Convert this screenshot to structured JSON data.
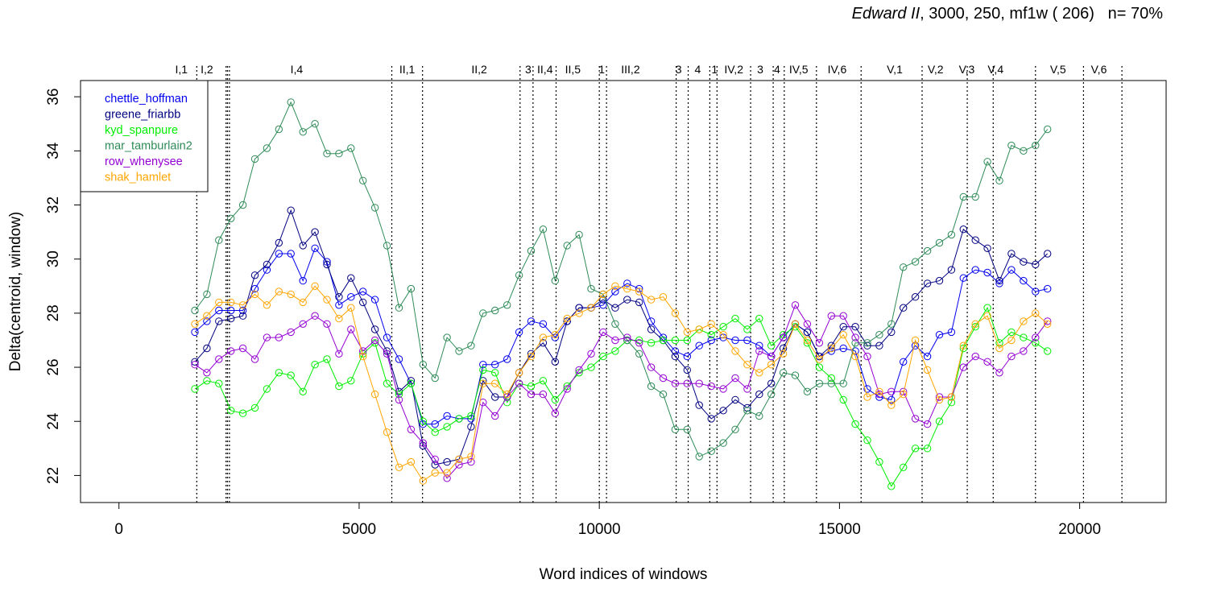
{
  "title": {
    "italic_part": "Edward II",
    "rest": ", 3000, 250, mf1w ( 206)",
    "coverage": "n= 70%"
  },
  "chart_data": {
    "type": "line",
    "xlabel": "Word indices of windows",
    "ylabel": "Delta(centroid, window)",
    "xlim": [
      -800,
      21800
    ],
    "ylim": [
      21.0,
      36.6
    ],
    "x_ticks": [
      0,
      5000,
      10000,
      15000,
      20000
    ],
    "x_tick_labels": [
      "0",
      "5000",
      "10000",
      "15000",
      "20000"
    ],
    "y_ticks": [
      22,
      24,
      26,
      28,
      30,
      32,
      34,
      36
    ],
    "y_tick_labels": [
      "22",
      "24",
      "26",
      "28",
      "30",
      "32",
      "34",
      "36"
    ],
    "legend_position": "top-left",
    "scenes": [
      {
        "label": "I,1",
        "x": 1300
      },
      {
        "label": "I,2",
        "x": 1830,
        "boundary": 1620
      },
      {
        "label": "I,4",
        "x": 3700,
        "boundary": 2260
      },
      {
        "label": "",
        "x": 2230,
        "boundary": 2230
      },
      {
        "label": "",
        "x": 2300,
        "boundary": 2300
      },
      {
        "label": "II,1",
        "x": 6000,
        "boundary": 5680
      },
      {
        "label": "II,2",
        "x": 7500,
        "boundary": 6320
      },
      {
        "label": "3",
        "x": 8520,
        "boundary": 8350
      },
      {
        "label": "II,4",
        "x": 8870,
        "boundary": 8620
      },
      {
        "label": "II,5",
        "x": 9450,
        "boundary": 9100
      },
      {
        "label": "1",
        "x": 10050,
        "boundary": 10000
      },
      {
        "label": "III,2",
        "x": 10650,
        "boundary": 10150
      },
      {
        "label": "3",
        "x": 11650,
        "boundary": 11600
      },
      {
        "label": "4",
        "x": 12050,
        "boundary": 11850
      },
      {
        "label": "1",
        "x": 12400,
        "boundary": 12300
      },
      {
        "label": "IV,2",
        "x": 12800,
        "boundary": 12450
      },
      {
        "label": "3",
        "x": 13350,
        "boundary": 13150
      },
      {
        "label": "4",
        "x": 13700,
        "boundary": 13620
      },
      {
        "label": "IV,5",
        "x": 14150,
        "boundary": 13850
      },
      {
        "label": "IV,6",
        "x": 14950,
        "boundary": 14520
      },
      {
        "label": "V,1",
        "x": 16150,
        "boundary": 15450
      },
      {
        "label": "V,2",
        "x": 17000,
        "boundary": 16720
      },
      {
        "label": "V,3",
        "x": 17650,
        "boundary": 17660
      },
      {
        "label": "V,4",
        "x": 18250,
        "boundary": 18200
      },
      {
        "label": "V,5",
        "x": 19550,
        "boundary": 19080
      },
      {
        "label": "V,6",
        "x": 20400,
        "boundary": 20080
      },
      {
        "label": "",
        "x": 20880,
        "boundary": 20880
      }
    ],
    "x": [
      1580,
      1830,
      2080,
      2330,
      2580,
      2830,
      3080,
      3330,
      3580,
      3830,
      4080,
      4330,
      4580,
      4830,
      5080,
      5330,
      5580,
      5830,
      6080,
      6330,
      6580,
      6830,
      7080,
      7330,
      7580,
      7830,
      8080,
      8330,
      8580,
      8830,
      9080,
      9330,
      9580,
      9830,
      10080,
      10330,
      10580,
      10830,
      11080,
      11330,
      11580,
      11830,
      12080,
      12330,
      12580,
      12830,
      13080,
      13330,
      13580,
      13830,
      14080,
      14330,
      14580,
      14830,
      15080,
      15330,
      15580,
      15830,
      16080,
      16330,
      16580,
      16830,
      17080,
      17330,
      17580,
      17830,
      18080,
      18330,
      18580,
      18830,
      19080,
      19330
    ],
    "series": [
      {
        "name": "chettle_hoffman",
        "color": "#0000ee",
        "values": [
          27.3,
          27.7,
          28.1,
          28.1,
          28.1,
          28.9,
          29.6,
          30.2,
          30.2,
          29.2,
          30.4,
          29.9,
          28.3,
          28.6,
          28.8,
          28.5,
          27.1,
          26.3,
          25.4,
          23.9,
          23.9,
          24.2,
          24.1,
          24.1,
          26.1,
          26.1,
          26.3,
          27.3,
          27.7,
          27.6,
          27.1,
          27.7,
          28.2,
          28.2,
          28.3,
          28.8,
          29.1,
          28.9,
          27.7,
          27.1,
          26.6,
          26.4,
          26.8,
          27.0,
          27.1,
          27.0,
          27.0,
          26.8,
          26.4,
          27.1,
          27.6,
          27.3,
          26.4,
          26.6,
          26.7,
          26.6,
          25.2,
          24.9,
          24.8,
          26.2,
          26.8,
          26.4,
          27.2,
          27.3,
          29.3,
          29.6,
          29.5,
          29.1,
          29.6,
          29.2,
          28.8,
          28.9
        ]
      },
      {
        "name": "greene_friarbb",
        "color": "#000080",
        "values": [
          26.2,
          26.7,
          27.7,
          27.8,
          27.9,
          29.4,
          29.8,
          30.6,
          31.8,
          30.5,
          31.0,
          29.8,
          28.6,
          29.3,
          28.4,
          27.4,
          26.6,
          25.1,
          25.5,
          23.1,
          22.4,
          22.5,
          22.6,
          23.8,
          25.5,
          24.9,
          24.9,
          25.8,
          26.5,
          26.9,
          26.2,
          27.7,
          28.2,
          28.2,
          28.5,
          28.2,
          28.5,
          28.4,
          27.4,
          27.0,
          26.4,
          25.9,
          24.6,
          24.1,
          24.4,
          24.8,
          24.5,
          25.0,
          25.4,
          26.7,
          27.6,
          27.3,
          26.4,
          26.8,
          27.5,
          27.5,
          26.8,
          26.8,
          27.3,
          28.2,
          28.6,
          29.1,
          29.2,
          29.6,
          31.1,
          30.7,
          30.4,
          29.2,
          30.2,
          29.9,
          29.8,
          30.2
        ]
      },
      {
        "name": "kyd_spanpure",
        "color": "#00ee00",
        "values": [
          25.2,
          25.5,
          25.4,
          24.4,
          24.3,
          24.5,
          25.2,
          25.8,
          25.7,
          25.1,
          26.1,
          26.3,
          25.3,
          25.5,
          26.5,
          26.9,
          25.4,
          25.0,
          25.4,
          24.0,
          23.6,
          23.8,
          24.1,
          24.2,
          25.9,
          25.8,
          24.7,
          25.4,
          25.3,
          25.5,
          24.8,
          25.3,
          25.8,
          26.0,
          26.4,
          26.6,
          27.0,
          27.0,
          26.9,
          27.0,
          27.0,
          27.0,
          27.4,
          27.2,
          27.5,
          27.8,
          27.4,
          27.8,
          26.8,
          27.2,
          27.5,
          26.9,
          26.0,
          25.6,
          24.8,
          23.9,
          23.3,
          22.5,
          21.6,
          22.3,
          23.0,
          23.0,
          24.0,
          24.7,
          26.7,
          27.5,
          28.2,
          26.9,
          27.3,
          27.1,
          26.9,
          26.6
        ]
      },
      {
        "name": "mar_tamburlain2",
        "color": "#2e8b57",
        "values": [
          28.1,
          28.7,
          30.7,
          31.5,
          32.0,
          33.7,
          34.1,
          34.8,
          35.8,
          34.7,
          35.0,
          33.9,
          33.9,
          34.1,
          32.9,
          31.9,
          30.5,
          28.2,
          28.9,
          26.1,
          25.6,
          27.1,
          26.6,
          26.8,
          28.0,
          28.1,
          28.3,
          29.4,
          30.3,
          31.1,
          29.2,
          30.5,
          30.9,
          28.9,
          28.7,
          27.6,
          27.0,
          26.5,
          25.3,
          25.0,
          23.7,
          23.7,
          22.7,
          22.9,
          23.2,
          23.7,
          24.4,
          24.2,
          25.0,
          25.8,
          25.7,
          25.1,
          25.4,
          25.4,
          25.4,
          26.9,
          26.9,
          27.2,
          27.6,
          29.7,
          29.9,
          30.3,
          30.6,
          30.9,
          32.3,
          32.3,
          33.6,
          32.9,
          34.2,
          34.0,
          34.2,
          34.8
        ]
      },
      {
        "name": "row_whenysee",
        "color": "#9400d3",
        "values": [
          26.1,
          25.8,
          26.3,
          26.6,
          26.7,
          26.3,
          27.1,
          27.1,
          27.3,
          27.6,
          27.9,
          27.6,
          26.5,
          27.4,
          26.6,
          27.0,
          26.5,
          24.8,
          23.7,
          23.2,
          22.6,
          21.9,
          22.4,
          22.5,
          24.7,
          24.2,
          24.9,
          25.4,
          25.0,
          25.0,
          24.3,
          25.2,
          25.9,
          26.5,
          27.3,
          27.0,
          27.1,
          26.9,
          26.0,
          25.6,
          25.4,
          25.4,
          25.4,
          25.3,
          25.2,
          25.6,
          25.2,
          26.6,
          26.4,
          27.1,
          28.3,
          27.6,
          26.9,
          27.9,
          27.9,
          27.1,
          26.4,
          25.0,
          25.1,
          25.1,
          24.1,
          23.9,
          24.9,
          24.9,
          26.0,
          26.4,
          26.2,
          25.8,
          26.4,
          26.6,
          27.1,
          27.7
        ]
      },
      {
        "name": "shak_hamlet",
        "color": "#ffa500",
        "values": [
          27.6,
          27.9,
          28.4,
          28.4,
          28.3,
          28.7,
          28.3,
          28.8,
          28.7,
          28.4,
          29.0,
          28.5,
          27.8,
          28.2,
          26.4,
          25.0,
          23.6,
          22.3,
          22.5,
          21.8,
          22.1,
          22.1,
          22.6,
          22.7,
          25.4,
          25.4,
          25.0,
          25.8,
          26.4,
          27.1,
          27.2,
          27.8,
          28.0,
          28.2,
          28.7,
          29.0,
          28.9,
          28.8,
          28.5,
          28.6,
          28.0,
          27.3,
          27.4,
          27.6,
          27.2,
          26.6,
          26.1,
          25.8,
          26.1,
          26.5,
          27.6,
          27.0,
          26.3,
          26.7,
          27.2,
          26.4,
          24.9,
          25.1,
          24.6,
          25.0,
          27.0,
          25.9,
          24.8,
          24.9,
          26.8,
          27.6,
          27.9,
          26.7,
          27.0,
          27.7,
          28.0,
          27.6
        ]
      }
    ]
  }
}
